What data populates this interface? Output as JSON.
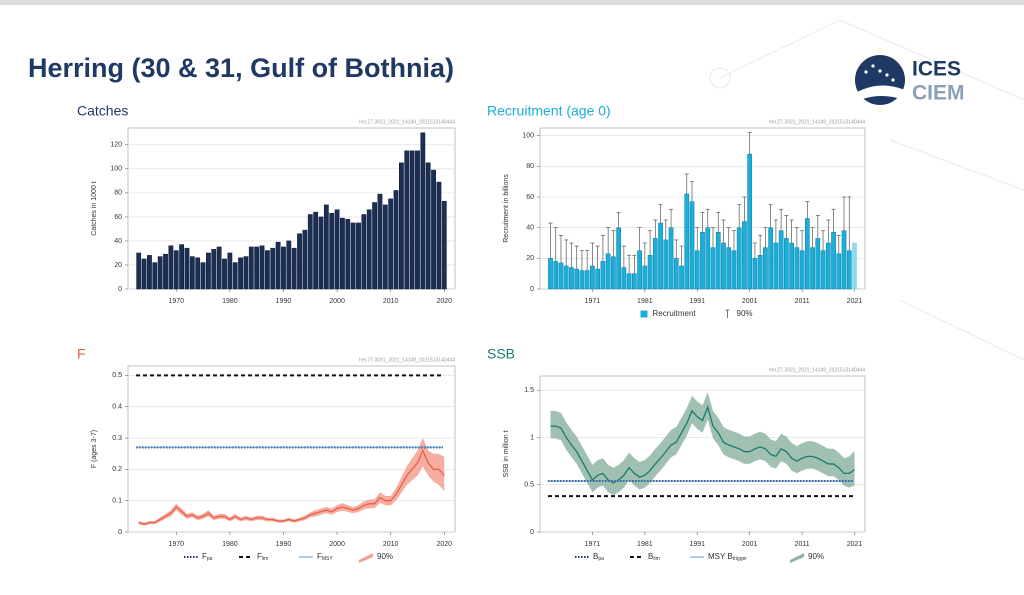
{
  "title": "Herring (30 & 31, Gulf of Bothnia)",
  "logo": {
    "top": "ICES",
    "bottom": "CIEM"
  },
  "chart_data": [
    {
      "type": "bar",
      "title": "Catches",
      "title_color": "#1f3864",
      "id_label": "her.27.3031_2021_14149_2021513140444",
      "ylabel": "Catches in 1000 t",
      "grid": true,
      "x": [
        1963,
        1964,
        1965,
        1966,
        1967,
        1968,
        1969,
        1970,
        1971,
        1972,
        1973,
        1974,
        1975,
        1976,
        1977,
        1978,
        1979,
        1980,
        1981,
        1982,
        1983,
        1984,
        1985,
        1986,
        1987,
        1988,
        1989,
        1990,
        1991,
        1992,
        1993,
        1994,
        1995,
        1996,
        1997,
        1998,
        1999,
        2000,
        2001,
        2002,
        2003,
        2004,
        2005,
        2006,
        2007,
        2008,
        2009,
        2010,
        2011,
        2012,
        2013,
        2014,
        2015,
        2016,
        2017,
        2018,
        2019,
        2020
      ],
      "series": [
        {
          "name": "Catches",
          "color": "#1b2f55",
          "edge": "#0d1a33",
          "values": [
            30,
            25,
            28,
            22,
            27,
            29,
            36,
            32,
            37,
            34,
            27,
            26,
            22,
            30,
            33,
            35,
            25,
            30,
            22,
            26,
            27,
            35,
            35,
            36,
            32,
            34,
            39,
            35,
            40,
            34,
            46,
            49,
            62,
            64,
            60,
            70,
            63,
            66,
            59,
            58,
            55,
            55,
            62,
            66,
            72,
            79,
            70,
            75,
            82,
            105,
            115,
            115,
            115,
            130,
            105,
            99,
            89,
            73
          ]
        }
      ],
      "xlim": [
        1961,
        2022
      ],
      "xticks": [
        1970,
        1980,
        1990,
        2000,
        2010,
        2020
      ],
      "ylim": [
        0,
        134
      ],
      "yticks": [
        0,
        20,
        40,
        60,
        80,
        100,
        120
      ]
    },
    {
      "type": "bar",
      "title": "Recruitment (age 0)",
      "title_color": "#1aaed9",
      "id_label": "her.27.3031_2021_14149_2021513140444",
      "ylabel": "Recruitment in billions",
      "grid": true,
      "err_label": "90%",
      "err_color": "#555555",
      "last_color": "#8fd9ec",
      "x": [
        1963,
        1964,
        1965,
        1966,
        1967,
        1968,
        1969,
        1970,
        1971,
        1972,
        1973,
        1974,
        1975,
        1976,
        1977,
        1978,
        1979,
        1980,
        1981,
        1982,
        1983,
        1984,
        1985,
        1986,
        1987,
        1988,
        1989,
        1990,
        1991,
        1992,
        1993,
        1994,
        1995,
        1996,
        1997,
        1998,
        1999,
        2000,
        2001,
        2002,
        2003,
        2004,
        2005,
        2006,
        2007,
        2008,
        2009,
        2010,
        2011,
        2012,
        2013,
        2014,
        2015,
        2016,
        2017,
        2018,
        2019,
        2020,
        2021
      ],
      "series": [
        {
          "name": "Recruitment",
          "color": "#1aaed9",
          "edge": "#0e7fa8",
          "values": [
            20,
            18,
            17,
            15,
            14,
            13,
            12,
            12,
            15,
            13,
            18,
            23,
            21,
            40,
            14,
            10,
            10,
            25,
            15,
            22,
            33,
            43,
            32,
            40,
            20,
            15,
            62,
            57,
            25,
            37,
            40,
            27,
            37,
            30,
            27,
            25,
            40,
            44,
            88,
            20,
            22,
            27,
            40,
            30,
            38,
            33,
            30,
            27,
            25,
            46,
            27,
            33,
            25,
            30,
            37,
            23,
            38,
            25,
            30
          ],
          "upper": [
            43,
            40,
            35,
            32,
            30,
            28,
            25,
            25,
            30,
            28,
            35,
            40,
            38,
            50,
            28,
            22,
            22,
            40,
            30,
            38,
            45,
            55,
            45,
            52,
            32,
            28,
            75,
            70,
            40,
            50,
            52,
            40,
            50,
            45,
            40,
            38,
            55,
            60,
            102,
            30,
            35,
            40,
            55,
            45,
            52,
            48,
            45,
            40,
            38,
            57,
            40,
            48,
            38,
            45,
            52,
            35,
            60,
            60,
            null
          ]
        }
      ],
      "xlim": [
        1961,
        2023
      ],
      "xticks": [
        1971,
        1981,
        1991,
        2001,
        2011,
        2021
      ],
      "ylim": [
        0,
        105
      ],
      "yticks": [
        0,
        20,
        40,
        60,
        80,
        100
      ]
    },
    {
      "type": "line",
      "title": "F",
      "title_color": "#e8604c",
      "id_label": "her.27.3031_2021_14149_2021513140444",
      "ylabel": "F (ages 3-7)",
      "grid": true,
      "ci_label": "90%",
      "band_color": "#f4a08f",
      "x": [
        1963,
        1964,
        1965,
        1966,
        1967,
        1968,
        1969,
        1970,
        1971,
        1972,
        1973,
        1974,
        1975,
        1976,
        1977,
        1978,
        1979,
        1980,
        1981,
        1982,
        1983,
        1984,
        1985,
        1986,
        1987,
        1988,
        1989,
        1990,
        1991,
        1992,
        1993,
        1994,
        1995,
        1996,
        1997,
        1998,
        1999,
        2000,
        2001,
        2002,
        2003,
        2004,
        2005,
        2006,
        2007,
        2008,
        2009,
        2010,
        2011,
        2012,
        2013,
        2014,
        2015,
        2016,
        2017,
        2018,
        2019,
        2020
      ],
      "series": [
        {
          "color": "#e8604c",
          "values": [
            0.03,
            0.025,
            0.03,
            0.03,
            0.04,
            0.05,
            0.06,
            0.08,
            0.065,
            0.05,
            0.055,
            0.045,
            0.05,
            0.06,
            0.045,
            0.05,
            0.05,
            0.04,
            0.05,
            0.04,
            0.045,
            0.04,
            0.045,
            0.045,
            0.04,
            0.04,
            0.035,
            0.035,
            0.04,
            0.035,
            0.04,
            0.045,
            0.055,
            0.06,
            0.065,
            0.07,
            0.065,
            0.075,
            0.08,
            0.075,
            0.07,
            0.075,
            0.085,
            0.09,
            0.09,
            0.11,
            0.1,
            0.1,
            0.12,
            0.15,
            0.18,
            0.2,
            0.22,
            0.26,
            0.22,
            0.2,
            0.2,
            0.18
          ],
          "ci_low": [
            0.025,
            0.02,
            0.025,
            0.025,
            0.033,
            0.042,
            0.05,
            0.07,
            0.055,
            0.042,
            0.047,
            0.038,
            0.042,
            0.05,
            0.038,
            0.042,
            0.042,
            0.034,
            0.042,
            0.034,
            0.038,
            0.034,
            0.038,
            0.038,
            0.034,
            0.034,
            0.03,
            0.03,
            0.034,
            0.03,
            0.034,
            0.038,
            0.047,
            0.05,
            0.055,
            0.06,
            0.055,
            0.064,
            0.068,
            0.064,
            0.06,
            0.064,
            0.072,
            0.076,
            0.076,
            0.093,
            0.085,
            0.085,
            0.1,
            0.125,
            0.15,
            0.165,
            0.18,
            0.21,
            0.18,
            0.16,
            0.15,
            0.13
          ],
          "ci_high": [
            0.035,
            0.03,
            0.035,
            0.035,
            0.047,
            0.058,
            0.07,
            0.09,
            0.075,
            0.058,
            0.063,
            0.052,
            0.058,
            0.07,
            0.052,
            0.058,
            0.058,
            0.046,
            0.058,
            0.046,
            0.052,
            0.046,
            0.052,
            0.052,
            0.046,
            0.046,
            0.04,
            0.04,
            0.046,
            0.04,
            0.046,
            0.052,
            0.063,
            0.07,
            0.075,
            0.08,
            0.075,
            0.086,
            0.092,
            0.086,
            0.08,
            0.086,
            0.098,
            0.104,
            0.104,
            0.127,
            0.115,
            0.115,
            0.14,
            0.175,
            0.21,
            0.235,
            0.26,
            0.3,
            0.26,
            0.25,
            0.25,
            0.24
          ]
        }
      ],
      "ref_lines": [
        {
          "label": {
            "main": "F",
            "sub": "pa"
          },
          "value": 0.27,
          "style": "dotted",
          "color": "#1f3864"
        },
        {
          "label": {
            "main": "F",
            "sub": "lim"
          },
          "value": 0.5,
          "style": "dashed",
          "color": "#111111"
        },
        {
          "label": {
            "main": "F",
            "sub": "MSY"
          },
          "value": 0.27,
          "style": "solid",
          "color": "#5b9bd5"
        }
      ],
      "xlim": [
        1961,
        2022
      ],
      "xticks": [
        1970,
        1980,
        1990,
        2000,
        2010,
        2020
      ],
      "ylim": [
        0,
        0.53
      ],
      "yticks": [
        0,
        0.1,
        0.2,
        0.3,
        0.4,
        0.5
      ]
    },
    {
      "type": "line",
      "title": "SSB",
      "title_color": "#1a7a6e",
      "id_label": "her.27.3031_2021_14149_2021513140444",
      "ylabel": "SSB in million t",
      "grid": true,
      "ci_label": "90%",
      "band_color": "#8fb5a5",
      "x": [
        1963,
        1964,
        1965,
        1966,
        1967,
        1968,
        1969,
        1970,
        1971,
        1972,
        1973,
        1974,
        1975,
        1976,
        1977,
        1978,
        1979,
        1980,
        1981,
        1982,
        1983,
        1984,
        1985,
        1986,
        1987,
        1988,
        1989,
        1990,
        1991,
        1992,
        1993,
        1994,
        1995,
        1996,
        1997,
        1998,
        1999,
        2000,
        2001,
        2002,
        2003,
        2004,
        2005,
        2006,
        2007,
        2008,
        2009,
        2010,
        2011,
        2012,
        2013,
        2014,
        2015,
        2016,
        2017,
        2018,
        2019,
        2020,
        2021
      ],
      "series": [
        {
          "color": "#1a7a6e",
          "values": [
            1.12,
            1.12,
            1.1,
            1.0,
            0.92,
            0.85,
            0.75,
            0.65,
            0.55,
            0.6,
            0.62,
            0.55,
            0.52,
            0.55,
            0.6,
            0.68,
            0.62,
            0.58,
            0.6,
            0.65,
            0.72,
            0.78,
            0.85,
            0.92,
            0.95,
            1.05,
            1.15,
            1.28,
            1.22,
            1.18,
            1.32,
            1.12,
            1.05,
            0.95,
            0.92,
            0.9,
            0.88,
            0.85,
            0.85,
            0.88,
            0.9,
            0.88,
            0.82,
            0.8,
            0.88,
            0.85,
            0.78,
            0.75,
            0.78,
            0.8,
            0.8,
            0.78,
            0.75,
            0.72,
            0.72,
            0.68,
            0.62,
            0.62,
            0.66
          ],
          "ci_low": [
            0.99,
            0.99,
            0.97,
            0.87,
            0.79,
            0.72,
            0.62,
            0.52,
            0.42,
            0.47,
            0.49,
            0.42,
            0.39,
            0.42,
            0.47,
            0.55,
            0.49,
            0.45,
            0.47,
            0.52,
            0.59,
            0.65,
            0.72,
            0.79,
            0.82,
            0.92,
            1.02,
            1.15,
            1.09,
            1.05,
            1.19,
            0.99,
            0.92,
            0.82,
            0.79,
            0.77,
            0.75,
            0.72,
            0.72,
            0.75,
            0.77,
            0.75,
            0.69,
            0.67,
            0.75,
            0.72,
            0.65,
            0.62,
            0.65,
            0.67,
            0.67,
            0.65,
            0.62,
            0.59,
            0.59,
            0.55,
            0.49,
            0.47,
            0.49
          ],
          "ci_high": [
            1.28,
            1.28,
            1.26,
            1.16,
            1.08,
            1.01,
            0.91,
            0.81,
            0.71,
            0.76,
            0.78,
            0.71,
            0.68,
            0.71,
            0.76,
            0.84,
            0.78,
            0.74,
            0.76,
            0.81,
            0.88,
            0.94,
            1.01,
            1.08,
            1.11,
            1.21,
            1.31,
            1.44,
            1.38,
            1.34,
            1.48,
            1.28,
            1.21,
            1.11,
            1.08,
            1.06,
            1.04,
            1.01,
            1.01,
            1.04,
            1.06,
            1.04,
            0.98,
            0.96,
            1.04,
            1.01,
            0.94,
            0.91,
            0.94,
            0.96,
            0.96,
            0.94,
            0.91,
            0.88,
            0.88,
            0.84,
            0.78,
            0.8,
            0.86
          ]
        }
      ],
      "ref_lines": [
        {
          "label": {
            "main": "B",
            "sub": "pa"
          },
          "value": 0.54,
          "style": "dotted",
          "color": "#1f3864"
        },
        {
          "label": {
            "main": "B",
            "sub": "lim"
          },
          "value": 0.38,
          "style": "dashed",
          "color": "#111111"
        },
        {
          "label": {
            "main": "MSY B",
            "sub": "trigger"
          },
          "value": 0.54,
          "style": "solid",
          "color": "#5b9bd5"
        }
      ],
      "xlim": [
        1961,
        2023
      ],
      "xticks": [
        1971,
        1981,
        1991,
        2001,
        2011,
        2021
      ],
      "ylim": [
        0,
        1.65
      ],
      "yticks": [
        0,
        0.5,
        1,
        1.5
      ]
    }
  ]
}
